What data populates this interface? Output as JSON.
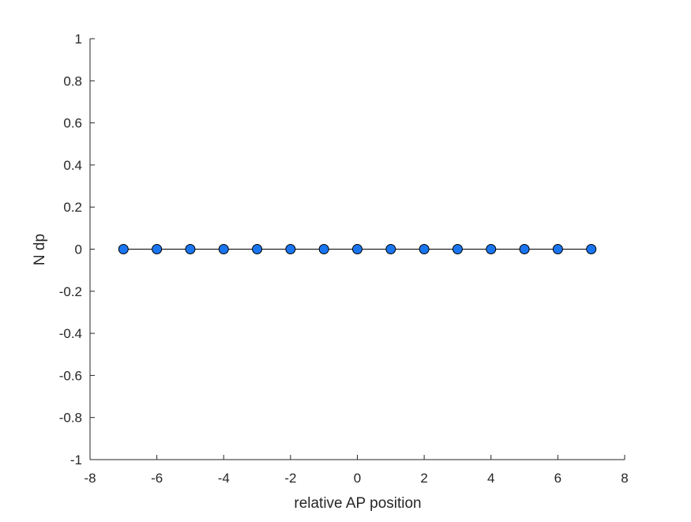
{
  "chart_data": {
    "type": "line",
    "xlabel": "relative AP position",
    "ylabel": "N dp",
    "xlim": [
      -8,
      8
    ],
    "ylim": [
      -1,
      1
    ],
    "xticks": [
      -8,
      -6,
      -4,
      -2,
      0,
      2,
      4,
      6,
      8
    ],
    "yticks": [
      -1,
      -0.8,
      -0.6,
      -0.4,
      -0.2,
      0,
      0.2,
      0.4,
      0.6,
      0.8,
      1
    ],
    "xtick_labels": [
      "-8",
      "-6",
      "-4",
      "-2",
      "0",
      "2",
      "4",
      "6",
      "8"
    ],
    "ytick_labels": [
      "-1",
      "-0.8",
      "-0.6",
      "-0.4",
      "-0.2",
      "0",
      "0.2",
      "0.4",
      "0.6",
      "0.8",
      "1"
    ],
    "grid": false,
    "series": [
      {
        "x": [
          -7,
          -6,
          -5,
          -4,
          -3,
          -2,
          -1,
          0,
          1,
          2,
          3,
          4,
          5,
          6,
          7
        ],
        "y": [
          0,
          0,
          0,
          0,
          0,
          0,
          0,
          0,
          0,
          0,
          0,
          0,
          0,
          0,
          0
        ],
        "line_color": "#000000",
        "marker_color": "#1a75f0",
        "marker_edge_color": "#000000",
        "marker": "circle"
      }
    ]
  }
}
